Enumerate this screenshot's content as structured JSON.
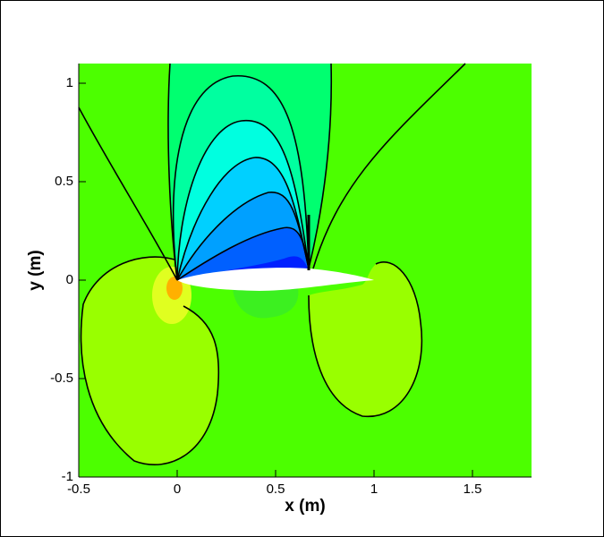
{
  "chart_data": {
    "type": "contour",
    "xlabel": "x (m)",
    "ylabel": "y (m)",
    "xlim": [
      -0.5,
      1.8
    ],
    "ylim": [
      -1,
      1.1
    ],
    "xticks": [
      -0.5,
      0,
      0.5,
      1,
      1.5
    ],
    "yticks": [
      -1,
      -0.5,
      0,
      0.5,
      1
    ]
  }
}
